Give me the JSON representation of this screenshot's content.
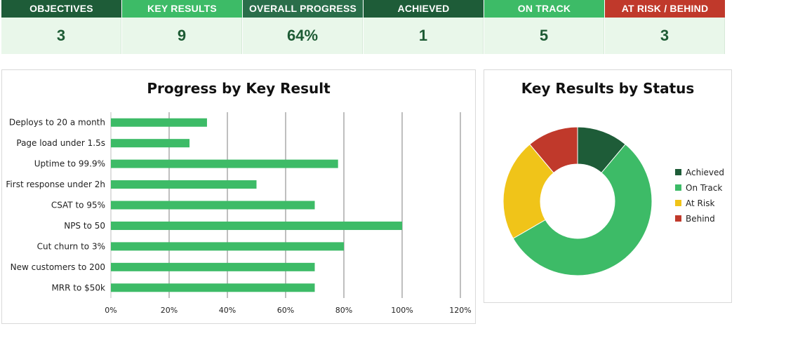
{
  "kpis": [
    {
      "label": "OBJECTIVES",
      "value": "3",
      "color": "#1e5c38"
    },
    {
      "label": "KEY RESULTS",
      "value": "9",
      "color": "#3dbb67"
    },
    {
      "label": "OVERALL PROGRESS",
      "value": "64%",
      "color": "#2a6e4a"
    },
    {
      "label": "ACHIEVED",
      "value": "1",
      "color": "#1e5c38"
    },
    {
      "label": "ON TRACK",
      "value": "5",
      "color": "#3dbb67"
    },
    {
      "label": "AT RISK / BEHIND",
      "value": "3",
      "color": "#c0392b"
    }
  ],
  "chart_data": [
    {
      "type": "bar",
      "orientation": "horizontal",
      "title": "Progress by Key Result",
      "categories": [
        "Deploys to 20 a month",
        "Page load under 1.5s",
        "Uptime to 99.9%",
        "First response under 2h",
        "CSAT to 95%",
        "NPS to 50",
        "Cut churn to 3%",
        "New customers to 200",
        "MRR to $50k"
      ],
      "values": [
        33,
        27,
        78,
        50,
        70,
        100,
        80,
        70,
        70
      ],
      "xlim": [
        0,
        120
      ],
      "x_ticks": [
        0,
        20,
        40,
        60,
        80,
        100,
        120
      ],
      "x_tick_labels": [
        "0%",
        "20%",
        "40%",
        "60%",
        "80%",
        "100%",
        "120%"
      ],
      "grid": "vertical",
      "bar_color": "#3dbb67",
      "grid_color": "#7f7f7f"
    },
    {
      "type": "pie",
      "variant": "donut",
      "title": "Key Results by Status",
      "labels": [
        "Achieved",
        "On Track",
        "At Risk",
        "Behind"
      ],
      "values": [
        1,
        5,
        2,
        1
      ],
      "colors": [
        "#1e5c38",
        "#3dbb67",
        "#f0c419",
        "#c0392b"
      ],
      "legend": "right"
    }
  ]
}
